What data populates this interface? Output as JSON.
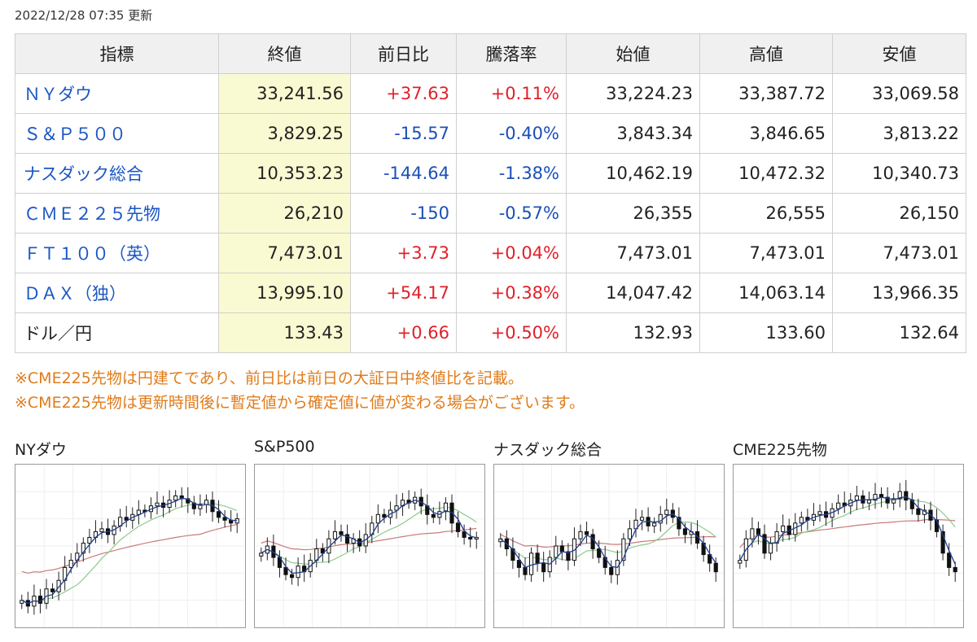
{
  "updated": "2022/12/28 07:35 更新",
  "table": {
    "headers": [
      "指標",
      "終値",
      "前日比",
      "騰落率",
      "始値",
      "高値",
      "安値"
    ],
    "rows": [
      {
        "name": "ＮＹダウ",
        "close": "33,241.56",
        "change": "+37.63",
        "pct": "+0.11%",
        "open": "33,224.23",
        "high": "33,387.72",
        "low": "33,069.58",
        "dir": "up",
        "link": true
      },
      {
        "name": "Ｓ＆Ｐ５００",
        "close": "3,829.25",
        "change": "-15.57",
        "pct": "-0.40%",
        "open": "3,843.34",
        "high": "3,846.65",
        "low": "3,813.22",
        "dir": "down",
        "link": true
      },
      {
        "name": "ナスダック総合",
        "close": "10,353.23",
        "change": "-144.64",
        "pct": "-1.38%",
        "open": "10,462.19",
        "high": "10,472.32",
        "low": "10,340.73",
        "dir": "down",
        "link": true
      },
      {
        "name": "ＣＭＥ２２５先物",
        "close": "26,210",
        "change": "-150",
        "pct": "-0.57%",
        "open": "26,355",
        "high": "26,555",
        "low": "26,150",
        "dir": "down",
        "link": true
      },
      {
        "name": "ＦＴ１００（英）",
        "close": "7,473.01",
        "change": "+3.73",
        "pct": "+0.04%",
        "open": "7,473.01",
        "high": "7,473.01",
        "low": "7,473.01",
        "dir": "up",
        "link": true
      },
      {
        "name": "ＤＡＸ（独）",
        "close": "13,995.10",
        "change": "+54.17",
        "pct": "+0.38%",
        "open": "14,047.42",
        "high": "14,063.14",
        "low": "13,966.35",
        "dir": "up",
        "link": true
      },
      {
        "name": "ドル／円",
        "close": "133.43",
        "change": "+0.66",
        "pct": "+0.50%",
        "open": "132.93",
        "high": "133.60",
        "low": "132.64",
        "dir": "up",
        "link": false
      }
    ]
  },
  "notes": [
    "※CME225先物は円建てであり、前日比は前日の大証日中終値比を記載。",
    "※CME225先物は更新時間後に暫定値から確定値に値が変わる場合がございます。"
  ],
  "colors": {
    "up": "#e0202a",
    "down": "#1a4fb8",
    "link": "#1a56c4",
    "note": "#e07b1a",
    "close_bg": "#fafad2",
    "ma_short": "#1f3f8f",
    "ma_mid": "#8fc98f",
    "ma_long": "#c97a7a"
  },
  "charts": [
    {
      "title": "NYダウ",
      "series": [
        0.12,
        0.08,
        0.15,
        0.1,
        0.2,
        0.18,
        0.26,
        0.35,
        0.4,
        0.45,
        0.52,
        0.56,
        0.6,
        0.62,
        0.58,
        0.64,
        0.7,
        0.68,
        0.72,
        0.75,
        0.74,
        0.78,
        0.8,
        0.77,
        0.82,
        0.85,
        0.83,
        0.8,
        0.76,
        0.79,
        0.82,
        0.74,
        0.7,
        0.68,
        0.66,
        0.69
      ]
    },
    {
      "title": "S&P500",
      "series": [
        0.45,
        0.5,
        0.42,
        0.35,
        0.3,
        0.28,
        0.36,
        0.32,
        0.4,
        0.48,
        0.45,
        0.55,
        0.6,
        0.58,
        0.52,
        0.55,
        0.5,
        0.58,
        0.66,
        0.72,
        0.7,
        0.75,
        0.78,
        0.82,
        0.8,
        0.84,
        0.78,
        0.72,
        0.7,
        0.74,
        0.8,
        0.66,
        0.6,
        0.56,
        0.55,
        0.56
      ]
    },
    {
      "title": "ナスダック総合",
      "series": [
        0.55,
        0.48,
        0.4,
        0.35,
        0.3,
        0.45,
        0.38,
        0.32,
        0.42,
        0.5,
        0.46,
        0.4,
        0.55,
        0.6,
        0.58,
        0.48,
        0.42,
        0.35,
        0.3,
        0.4,
        0.55,
        0.62,
        0.68,
        0.7,
        0.64,
        0.66,
        0.72,
        0.75,
        0.7,
        0.62,
        0.58,
        0.6,
        0.52,
        0.44,
        0.38,
        0.32
      ]
    },
    {
      "title": "CME225先物",
      "series": [
        0.4,
        0.55,
        0.62,
        0.58,
        0.45,
        0.52,
        0.6,
        0.64,
        0.58,
        0.66,
        0.7,
        0.68,
        0.72,
        0.74,
        0.7,
        0.76,
        0.8,
        0.78,
        0.82,
        0.85,
        0.8,
        0.82,
        0.86,
        0.84,
        0.8,
        0.83,
        0.88,
        0.82,
        0.76,
        0.72,
        0.75,
        0.68,
        0.6,
        0.45,
        0.35,
        0.32
      ]
    }
  ]
}
